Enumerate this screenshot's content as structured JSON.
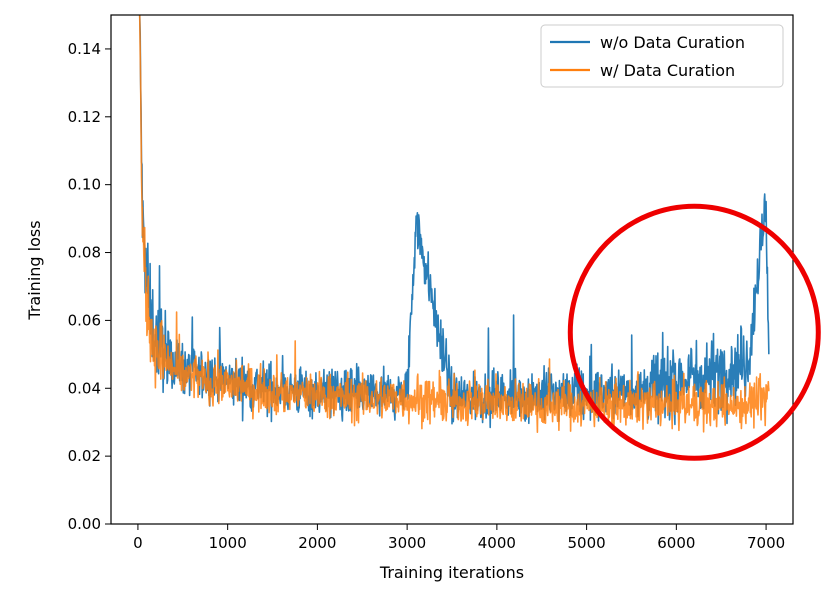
{
  "chart_data": {
    "type": "line",
    "xlabel": "Training iterations",
    "ylabel": "Training loss",
    "xlim": [
      -300,
      7300
    ],
    "ylim": [
      0.0,
      0.15
    ],
    "xticks": [
      0,
      1000,
      2000,
      3000,
      4000,
      5000,
      6000,
      7000
    ],
    "xtick_labels": [
      "0",
      "1000",
      "2000",
      "3000",
      "4000",
      "5000",
      "6000",
      "7000"
    ],
    "yticks": [
      0.0,
      0.02,
      0.04,
      0.06,
      0.08,
      0.1,
      0.12,
      0.14
    ],
    "ytick_labels": [
      "0.00",
      "0.02",
      "0.04",
      "0.06",
      "0.08",
      "0.10",
      "0.12",
      "0.14"
    ],
    "grid": false,
    "legend_position": "top-right",
    "series": [
      {
        "name": "w/o Data Curation",
        "color": "#1f77b4",
        "x": [
          20,
          50,
          100,
          150,
          200,
          300,
          500,
          800,
          1000,
          1500,
          2000,
          2500,
          3000,
          3100,
          3500,
          4000,
          4500,
          5000,
          5500,
          6000,
          6500,
          6800,
          7000,
          7030
        ],
        "y": [
          0.15,
          0.09,
          0.07,
          0.06,
          0.055,
          0.05,
          0.046,
          0.043,
          0.042,
          0.04,
          0.039,
          0.038,
          0.038,
          0.09,
          0.037,
          0.038,
          0.038,
          0.038,
          0.039,
          0.042,
          0.045,
          0.048,
          0.095,
          0.05
        ]
      },
      {
        "name": "w/ Data Curation",
        "color": "#ff7f0e",
        "x": [
          20,
          50,
          100,
          150,
          200,
          300,
          500,
          800,
          1000,
          1500,
          2000,
          2500,
          3000,
          3500,
          4000,
          4500,
          5000,
          5500,
          6000,
          6500,
          7000,
          7030
        ],
        "y": [
          0.15,
          0.085,
          0.065,
          0.057,
          0.052,
          0.048,
          0.044,
          0.042,
          0.041,
          0.039,
          0.038,
          0.037,
          0.037,
          0.036,
          0.036,
          0.035,
          0.035,
          0.035,
          0.035,
          0.035,
          0.036,
          0.04
        ]
      }
    ],
    "annotations": [
      {
        "type": "circle",
        "color": "#ee0000",
        "center_x": 6200,
        "center_y": 0.0565,
        "note": "highlighted region"
      }
    ]
  }
}
